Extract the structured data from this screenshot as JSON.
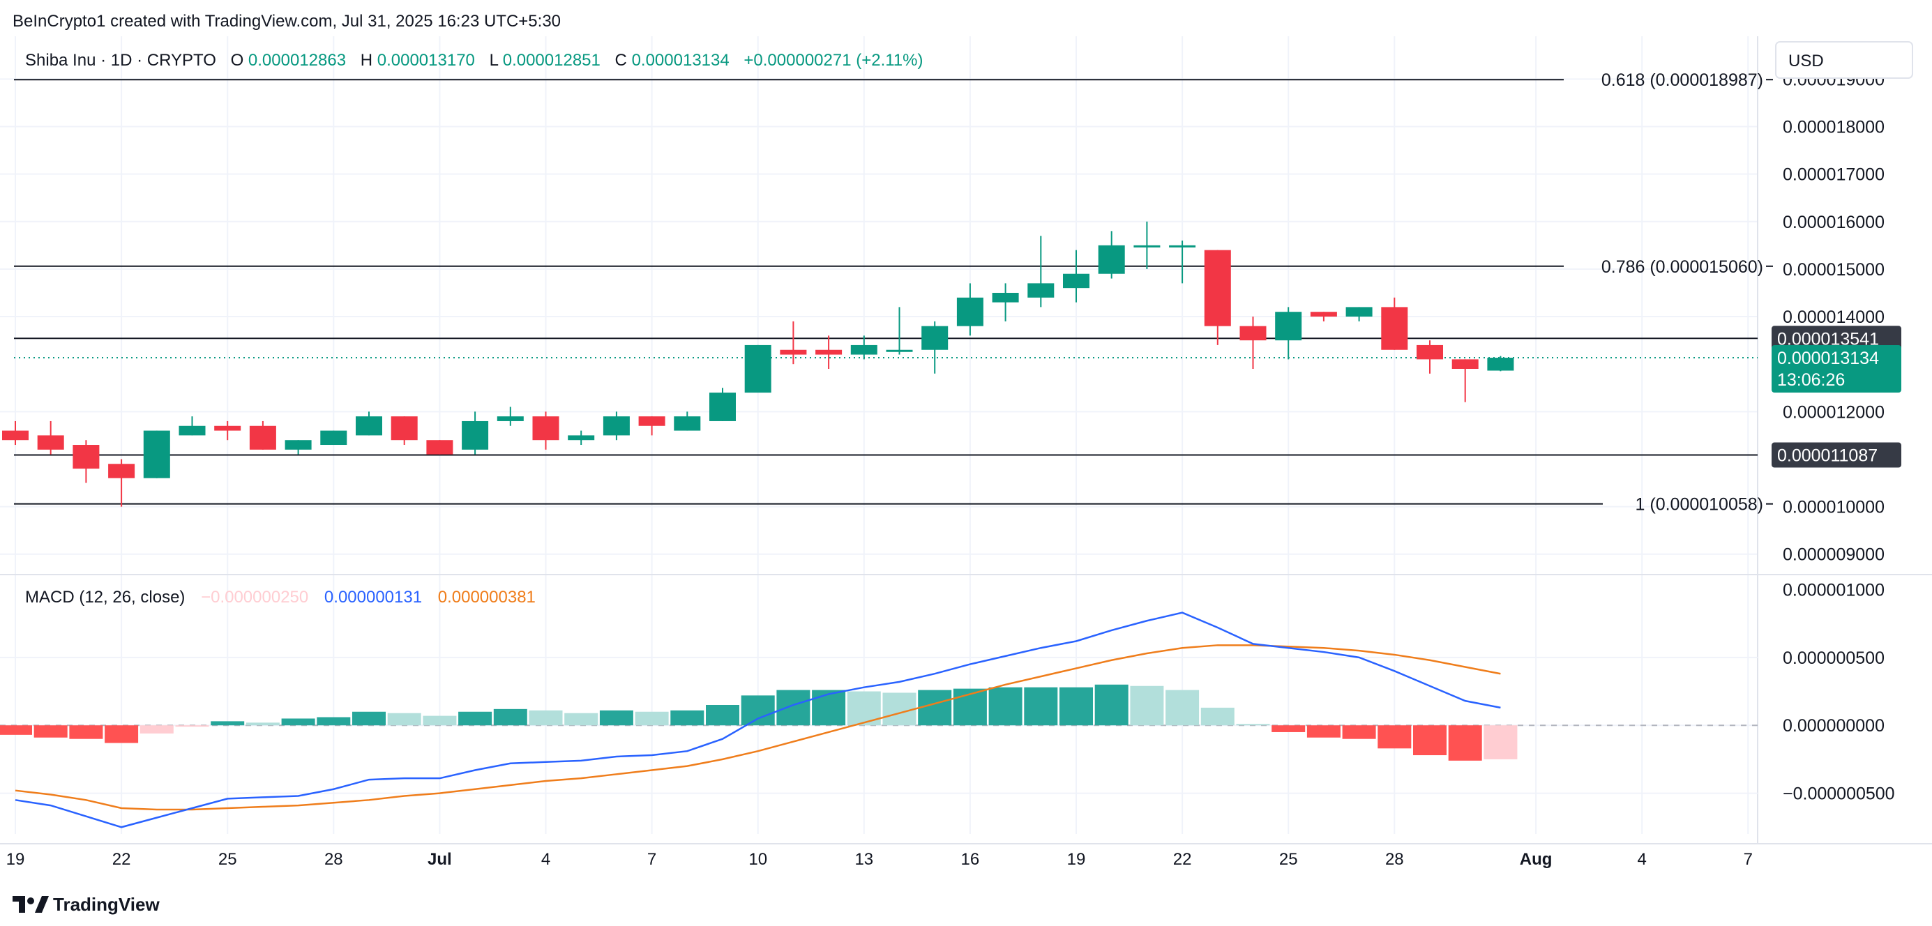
{
  "header": {
    "credit": "BeInCrypto1 created with TradingView.com, Jul 31, 2025 16:23 UTC+5:30"
  },
  "legend": {
    "symbol": "Shiba Inu · 1D · CRYPTO",
    "o_label": "O",
    "o_value": "0.000012863",
    "h_label": "H",
    "h_value": "0.000013170",
    "l_label": "L",
    "l_value": "0.000012851",
    "c_label": "C",
    "c_value": "0.000013134",
    "change": "+0.000000271 (+2.11%)"
  },
  "currency_button": "USD",
  "footer": {
    "logo_text": "TradingView"
  },
  "colors": {
    "up": "#089981",
    "down": "#f23645",
    "hist_up_strong": "#26a69a",
    "hist_up_weak": "#b2dfdb",
    "hist_down_strong": "#ff5252",
    "hist_down_weak": "#ffcdd2",
    "macd_line": "#2962ff",
    "signal_line": "#ff6d00",
    "grid": "#f0f3fa",
    "text": "#131722",
    "badge_dark": "#363a45"
  },
  "chart_data": [
    {
      "type": "candlestick",
      "title": "Shiba Inu · 1D · CRYPTO",
      "price_axis": {
        "ticks": [
          "0.000019000",
          "0.000018000",
          "0.000017000",
          "0.000016000",
          "0.000015000",
          "0.000014000",
          "0.000012000",
          "0.000010000",
          "0.000009000"
        ],
        "tick_values": [
          1.9e-05,
          1.8e-05,
          1.7e-05,
          1.6e-05,
          1.5e-05,
          1.4e-05,
          1.2e-05,
          1e-05,
          9e-06
        ],
        "range": [
          8.6e-06,
          1.99e-05
        ]
      },
      "time_axis": {
        "labels": [
          "19",
          "22",
          "25",
          "28",
          "Jul",
          "4",
          "7",
          "10",
          "13",
          "16",
          "19",
          "22",
          "25",
          "28",
          "Aug",
          "4",
          "7"
        ],
        "label_day_index": [
          0,
          3,
          6,
          9,
          12,
          15,
          18,
          21,
          24,
          27,
          30,
          33,
          36,
          39,
          43,
          46,
          49
        ],
        "bold_labels": [
          "Jul",
          "Aug"
        ]
      },
      "fib_levels": [
        {
          "label": "0.618 (0.000018987)",
          "value": 1.8987e-05
        },
        {
          "label": "0.786 (0.000015060)",
          "value": 1.506e-05
        },
        {
          "label": "1 (0.000010058)",
          "value": 1.0058e-05
        }
      ],
      "horizontal_levels": [
        {
          "label": "0.000013541",
          "value": 1.3541e-05
        },
        {
          "label": "0.000011087",
          "value": 1.1087e-05
        }
      ],
      "current_price": {
        "label": "0.000013134",
        "countdown": "13:06:26",
        "value": 1.3134e-05
      },
      "candles": [
        {
          "o": 1.16e-05,
          "h": 1.18e-05,
          "l": 1.13e-05,
          "c": 1.14e-05
        },
        {
          "o": 1.15e-05,
          "h": 1.18e-05,
          "l": 1.11e-05,
          "c": 1.12e-05
        },
        {
          "o": 1.13e-05,
          "h": 1.14e-05,
          "l": 1.05e-05,
          "c": 1.08e-05
        },
        {
          "o": 1.09e-05,
          "h": 1.1e-05,
          "l": 1e-05,
          "c": 1.06e-05
        },
        {
          "o": 1.06e-05,
          "h": 1.16e-05,
          "l": 1.06e-05,
          "c": 1.16e-05
        },
        {
          "o": 1.15e-05,
          "h": 1.19e-05,
          "l": 1.15e-05,
          "c": 1.17e-05
        },
        {
          "o": 1.17e-05,
          "h": 1.18e-05,
          "l": 1.14e-05,
          "c": 1.16e-05
        },
        {
          "o": 1.17e-05,
          "h": 1.18e-05,
          "l": 1.12e-05,
          "c": 1.12e-05
        },
        {
          "o": 1.12e-05,
          "h": 1.14e-05,
          "l": 1.11e-05,
          "c": 1.14e-05
        },
        {
          "o": 1.13e-05,
          "h": 1.16e-05,
          "l": 1.13e-05,
          "c": 1.16e-05
        },
        {
          "o": 1.15e-05,
          "h": 1.2e-05,
          "l": 1.15e-05,
          "c": 1.19e-05
        },
        {
          "o": 1.19e-05,
          "h": 1.19e-05,
          "l": 1.13e-05,
          "c": 1.14e-05
        },
        {
          "o": 1.14e-05,
          "h": 1.14e-05,
          "l": 1.11e-05,
          "c": 1.11e-05
        },
        {
          "o": 1.12e-05,
          "h": 1.2e-05,
          "l": 1.11e-05,
          "c": 1.18e-05
        },
        {
          "o": 1.18e-05,
          "h": 1.21e-05,
          "l": 1.17e-05,
          "c": 1.19e-05
        },
        {
          "o": 1.19e-05,
          "h": 1.2e-05,
          "l": 1.12e-05,
          "c": 1.14e-05
        },
        {
          "o": 1.14e-05,
          "h": 1.16e-05,
          "l": 1.13e-05,
          "c": 1.15e-05
        },
        {
          "o": 1.15e-05,
          "h": 1.2e-05,
          "l": 1.14e-05,
          "c": 1.19e-05
        },
        {
          "o": 1.19e-05,
          "h": 1.19e-05,
          "l": 1.15e-05,
          "c": 1.17e-05
        },
        {
          "o": 1.16e-05,
          "h": 1.2e-05,
          "l": 1.16e-05,
          "c": 1.19e-05
        },
        {
          "o": 1.18e-05,
          "h": 1.25e-05,
          "l": 1.18e-05,
          "c": 1.24e-05
        },
        {
          "o": 1.24e-05,
          "h": 1.34e-05,
          "l": 1.24e-05,
          "c": 1.34e-05
        },
        {
          "o": 1.33e-05,
          "h": 1.39e-05,
          "l": 1.3e-05,
          "c": 1.32e-05
        },
        {
          "o": 1.33e-05,
          "h": 1.36e-05,
          "l": 1.29e-05,
          "c": 1.32e-05
        },
        {
          "o": 1.32e-05,
          "h": 1.36e-05,
          "l": 1.31e-05,
          "c": 1.34e-05
        },
        {
          "o": 1.33e-05,
          "h": 1.42e-05,
          "l": 1.32e-05,
          "c": 1.33e-05
        },
        {
          "o": 1.33e-05,
          "h": 1.39e-05,
          "l": 1.28e-05,
          "c": 1.38e-05
        },
        {
          "o": 1.38e-05,
          "h": 1.47e-05,
          "l": 1.36e-05,
          "c": 1.44e-05
        },
        {
          "o": 1.43e-05,
          "h": 1.47e-05,
          "l": 1.39e-05,
          "c": 1.45e-05
        },
        {
          "o": 1.44e-05,
          "h": 1.57e-05,
          "l": 1.42e-05,
          "c": 1.47e-05
        },
        {
          "o": 1.46e-05,
          "h": 1.54e-05,
          "l": 1.43e-05,
          "c": 1.49e-05
        },
        {
          "o": 1.49e-05,
          "h": 1.58e-05,
          "l": 1.48e-05,
          "c": 1.55e-05
        },
        {
          "o": 1.55e-05,
          "h": 1.6e-05,
          "l": 1.5e-05,
          "c": 1.55e-05
        },
        {
          "o": 1.55e-05,
          "h": 1.56e-05,
          "l": 1.47e-05,
          "c": 1.55e-05
        },
        {
          "o": 1.54e-05,
          "h": 1.54e-05,
          "l": 1.34e-05,
          "c": 1.38e-05
        },
        {
          "o": 1.38e-05,
          "h": 1.4e-05,
          "l": 1.29e-05,
          "c": 1.35e-05
        },
        {
          "o": 1.35e-05,
          "h": 1.42e-05,
          "l": 1.31e-05,
          "c": 1.41e-05
        },
        {
          "o": 1.41e-05,
          "h": 1.41e-05,
          "l": 1.39e-05,
          "c": 1.4e-05
        },
        {
          "o": 1.4e-05,
          "h": 1.42e-05,
          "l": 1.39e-05,
          "c": 1.42e-05
        },
        {
          "o": 1.42e-05,
          "h": 1.44e-05,
          "l": 1.33e-05,
          "c": 1.33e-05
        },
        {
          "o": 1.34e-05,
          "h": 1.35e-05,
          "l": 1.28e-05,
          "c": 1.31e-05
        },
        {
          "o": 1.31e-05,
          "h": 1.31e-05,
          "l": 1.22e-05,
          "c": 1.29e-05
        },
        {
          "o": 1.2863e-05,
          "h": 1.317e-05,
          "l": 1.2851e-05,
          "c": 1.3134e-05
        }
      ]
    },
    {
      "type": "bar",
      "title": "MACD (12, 26, close)",
      "legend_values": {
        "histogram": "−0.000000250",
        "macd": "0.000000131",
        "signal": "0.000000381"
      },
      "axis_ticks": [
        "0.000001000",
        "0.000000500",
        "0.000000000",
        "−0.000000500"
      ],
      "tick_values": [
        1e-06,
        5e-07,
        0,
        -5e-07
      ],
      "range": [
        -8e-07,
        1.1e-06
      ],
      "histogram": [
        -0.07,
        -0.09,
        -0.1,
        -0.13,
        -0.06,
        -0.01,
        0.03,
        0.02,
        0.05,
        0.06,
        0.1,
        0.09,
        0.07,
        0.1,
        0.12,
        0.11,
        0.09,
        0.11,
        0.1,
        0.11,
        0.15,
        0.22,
        0.26,
        0.26,
        0.25,
        0.24,
        0.26,
        0.27,
        0.28,
        0.28,
        0.28,
        0.3,
        0.29,
        0.26,
        0.13,
        0.01,
        -0.05,
        -0.09,
        -0.1,
        -0.17,
        -0.22,
        -0.26,
        -0.25
      ],
      "macd": [
        -0.55,
        -0.59,
        -0.67,
        -0.75,
        -0.68,
        -0.61,
        -0.54,
        -0.53,
        -0.52,
        -0.47,
        -0.4,
        -0.39,
        -0.39,
        -0.33,
        -0.28,
        -0.27,
        -0.26,
        -0.23,
        -0.22,
        -0.19,
        -0.1,
        0.05,
        0.15,
        0.23,
        0.28,
        0.32,
        0.38,
        0.45,
        0.51,
        0.57,
        0.62,
        0.7,
        0.77,
        0.83,
        0.72,
        0.6,
        0.57,
        0.54,
        0.5,
        0.4,
        0.29,
        0.18,
        0.13
      ],
      "signal": [
        -0.48,
        -0.51,
        -0.55,
        -0.61,
        -0.62,
        -0.62,
        -0.61,
        -0.6,
        -0.59,
        -0.57,
        -0.55,
        -0.52,
        -0.5,
        -0.47,
        -0.44,
        -0.41,
        -0.39,
        -0.36,
        -0.33,
        -0.3,
        -0.25,
        -0.19,
        -0.12,
        -0.05,
        0.02,
        0.09,
        0.16,
        0.23,
        0.3,
        0.36,
        0.42,
        0.48,
        0.53,
        0.57,
        0.59,
        0.59,
        0.58,
        0.57,
        0.55,
        0.52,
        0.48,
        0.43,
        0.38
      ],
      "value_unit_multiplier": 1e-06
    }
  ]
}
